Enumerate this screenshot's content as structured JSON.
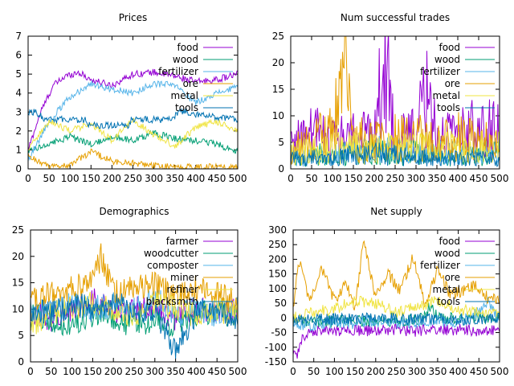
{
  "chart_data": [
    {
      "type": "line",
      "title": "Prices",
      "xlim": [
        0,
        500
      ],
      "ylim": [
        0,
        7
      ],
      "xticks": [
        0,
        50,
        100,
        150,
        200,
        250,
        300,
        350,
        400,
        450,
        500
      ],
      "yticks": [
        0,
        1,
        2,
        3,
        4,
        5,
        6,
        7
      ],
      "grid": false,
      "legend_position": "top-right",
      "series": [
        {
          "name": "food",
          "color": "#9400d3",
          "x": [
            0,
            30,
            60,
            90,
            120,
            150,
            200,
            250,
            300,
            350,
            400,
            450,
            500
          ],
          "y": [
            1.0,
            3.0,
            4.4,
            4.9,
            5.1,
            4.7,
            4.4,
            5.0,
            5.1,
            4.9,
            4.6,
            4.7,
            5.0
          ]
        },
        {
          "name": "wood",
          "color": "#009e73",
          "x": [
            0,
            50,
            100,
            150,
            200,
            250,
            300,
            350,
            400,
            450,
            500
          ],
          "y": [
            1.0,
            1.3,
            1.7,
            1.3,
            1.7,
            1.5,
            1.9,
            1.6,
            1.5,
            1.3,
            0.9
          ]
        },
        {
          "name": "fertilizer",
          "color": "#56b4e9",
          "x": [
            0,
            50,
            100,
            150,
            200,
            250,
            300,
            350,
            400,
            450,
            500
          ],
          "y": [
            0.5,
            2.5,
            3.8,
            4.5,
            4.2,
            4.0,
            4.5,
            4.4,
            3.5,
            4.0,
            4.3
          ]
        },
        {
          "name": "ore",
          "color": "#e69f00",
          "x": [
            0,
            50,
            100,
            150,
            200,
            250,
            300,
            350,
            400,
            450,
            500
          ],
          "y": [
            0.7,
            0.1,
            0.2,
            0.9,
            0.4,
            0.3,
            0.2,
            0.1,
            0.1,
            0.1,
            0.1
          ]
        },
        {
          "name": "metal",
          "color": "#f0e442",
          "x": [
            0,
            50,
            100,
            150,
            200,
            250,
            300,
            350,
            400,
            450,
            500
          ],
          "y": [
            1.0,
            2.5,
            2.0,
            2.4,
            1.5,
            2.6,
            1.8,
            1.2,
            2.2,
            2.5,
            2.0
          ]
        },
        {
          "name": "tools",
          "color": "#0072b2",
          "x": [
            0,
            20,
            40,
            80,
            140,
            145,
            240,
            245,
            340,
            360,
            380,
            420,
            460,
            500
          ],
          "y": [
            3.0,
            3.0,
            2.6,
            2.6,
            2.6,
            2.3,
            2.3,
            2.6,
            2.6,
            3.0,
            3.0,
            2.8,
            2.7,
            2.6
          ]
        }
      ]
    },
    {
      "type": "line",
      "title": "Num successful trades",
      "xlim": [
        0,
        500
      ],
      "ylim": [
        0,
        25
      ],
      "xticks": [
        0,
        50,
        100,
        150,
        200,
        250,
        300,
        350,
        400,
        450,
        500
      ],
      "yticks": [
        0,
        5,
        10,
        15,
        20,
        25
      ],
      "grid": false,
      "legend_position": "top-right",
      "series": [
        {
          "name": "food",
          "color": "#9400d3",
          "x": [
            0,
            50,
            100,
            150,
            200,
            225,
            250,
            300,
            330,
            350,
            400,
            450,
            500
          ],
          "y": [
            5,
            7,
            6,
            6,
            7,
            21,
            5,
            7,
            14,
            6,
            6,
            8,
            7
          ]
        },
        {
          "name": "wood",
          "color": "#009e73",
          "x": [
            0,
            100,
            200,
            300,
            400,
            500
          ],
          "y": [
            2,
            3,
            3,
            3,
            2,
            3
          ]
        },
        {
          "name": "fertilizer",
          "color": "#56b4e9",
          "x": [
            0,
            100,
            200,
            300,
            400,
            500
          ],
          "y": [
            2,
            3,
            4,
            3,
            3,
            3
          ]
        },
        {
          "name": "ore",
          "color": "#e69f00",
          "x": [
            0,
            50,
            100,
            130,
            150,
            200,
            250,
            300,
            350,
            400,
            450,
            500
          ],
          "y": [
            3,
            6,
            7,
            17,
            6,
            5,
            6,
            6,
            5,
            6,
            5,
            5
          ]
        },
        {
          "name": "metal",
          "color": "#f0e442",
          "x": [
            0,
            100,
            200,
            300,
            400,
            500
          ],
          "y": [
            3,
            4,
            4,
            4,
            4,
            4
          ]
        },
        {
          "name": "tools",
          "color": "#0072b2",
          "x": [
            0,
            100,
            200,
            300,
            400,
            500
          ],
          "y": [
            2,
            2,
            3,
            2,
            2,
            2
          ]
        }
      ]
    },
    {
      "type": "line",
      "title": "Demographics",
      "xlim": [
        0,
        500
      ],
      "ylim": [
        0,
        25
      ],
      "xticks": [
        0,
        50,
        100,
        150,
        200,
        250,
        300,
        350,
        400,
        450,
        500
      ],
      "yticks": [
        0,
        5,
        10,
        15,
        20,
        25
      ],
      "grid": false,
      "legend_position": "top-right",
      "series": [
        {
          "name": "farmer",
          "color": "#9400d3",
          "x": [
            0,
            50,
            100,
            150,
            200,
            250,
            300,
            350,
            400,
            450,
            500
          ],
          "y": [
            10,
            8,
            10,
            12,
            9,
            10,
            11,
            8,
            10,
            9,
            10
          ]
        },
        {
          "name": "woodcutter",
          "color": "#009e73",
          "x": [
            0,
            50,
            100,
            150,
            200,
            250,
            300,
            350,
            400,
            450,
            500
          ],
          "y": [
            9,
            8,
            7,
            9,
            8,
            7,
            8,
            7,
            9,
            10,
            8
          ]
        },
        {
          "name": "composter",
          "color": "#56b4e9",
          "x": [
            0,
            50,
            100,
            150,
            200,
            250,
            300,
            350,
            400,
            450,
            500
          ],
          "y": [
            9,
            10,
            11,
            10,
            11,
            10,
            12,
            9,
            10,
            9,
            10
          ]
        },
        {
          "name": "miner",
          "color": "#e69f00",
          "x": [
            0,
            50,
            100,
            150,
            170,
            200,
            250,
            300,
            350,
            400,
            450,
            500
          ],
          "y": [
            12,
            13,
            14,
            15,
            20,
            13,
            14,
            15,
            12,
            14,
            13,
            11
          ]
        },
        {
          "name": "refiner",
          "color": "#f0e442",
          "x": [
            0,
            50,
            100,
            150,
            200,
            250,
            300,
            350,
            400,
            450,
            500
          ],
          "y": [
            7,
            9,
            10,
            11,
            10,
            9,
            11,
            10,
            9,
            10,
            9
          ]
        },
        {
          "name": "blacksmith",
          "color": "#0072b2",
          "x": [
            0,
            50,
            100,
            150,
            200,
            250,
            300,
            350,
            400,
            450,
            500
          ],
          "y": [
            10,
            9,
            11,
            10,
            12,
            9,
            10,
            2,
            9,
            10,
            8
          ]
        }
      ]
    },
    {
      "type": "line",
      "title": "Net supply",
      "xlim": [
        0,
        500
      ],
      "ylim": [
        -150,
        300
      ],
      "xticks": [
        0,
        50,
        100,
        150,
        200,
        250,
        300,
        350,
        400,
        450,
        500
      ],
      "yticks": [
        -150,
        -100,
        -50,
        0,
        50,
        100,
        150,
        200,
        250,
        300
      ],
      "grid": false,
      "legend_position": "top-right",
      "series": [
        {
          "name": "food",
          "color": "#9400d3",
          "x": [
            0,
            10,
            25,
            50,
            100,
            150,
            200,
            250,
            300,
            350,
            400,
            450,
            500
          ],
          "y": [
            -120,
            -130,
            -60,
            -40,
            -45,
            -40,
            -45,
            -40,
            -45,
            -40,
            -40,
            -45,
            -45
          ]
        },
        {
          "name": "wood",
          "color": "#009e73",
          "x": [
            0,
            50,
            100,
            150,
            200,
            250,
            300,
            320,
            330,
            350,
            400,
            450,
            500
          ],
          "y": [
            -10,
            -15,
            -10,
            -5,
            -15,
            -10,
            -5,
            10,
            40,
            5,
            -5,
            0,
            0
          ]
        },
        {
          "name": "fertilizer",
          "color": "#56b4e9",
          "x": [
            0,
            50,
            100,
            150,
            200,
            250,
            300,
            350,
            400,
            450,
            470,
            500
          ],
          "y": [
            -20,
            -25,
            -15,
            -20,
            -10,
            -20,
            -15,
            -10,
            -15,
            20,
            60,
            -10
          ]
        },
        {
          "name": "ore",
          "color": "#e69f00",
          "x": [
            0,
            15,
            40,
            70,
            100,
            130,
            150,
            170,
            200,
            230,
            260,
            290,
            320,
            350,
            380,
            410,
            440,
            470,
            500
          ],
          "y": [
            40,
            200,
            50,
            170,
            60,
            120,
            30,
            260,
            70,
            150,
            90,
            210,
            40,
            170,
            80,
            90,
            110,
            70,
            60
          ]
        },
        {
          "name": "metal",
          "color": "#f0e442",
          "x": [
            0,
            50,
            100,
            150,
            200,
            250,
            300,
            350,
            400,
            450,
            500
          ],
          "y": [
            0,
            20,
            30,
            60,
            50,
            20,
            40,
            60,
            30,
            20,
            10
          ]
        },
        {
          "name": "tools",
          "color": "#0072b2",
          "x": [
            0,
            100,
            200,
            300,
            400,
            500
          ],
          "y": [
            -5,
            -5,
            0,
            -5,
            -5,
            0
          ]
        }
      ]
    }
  ]
}
